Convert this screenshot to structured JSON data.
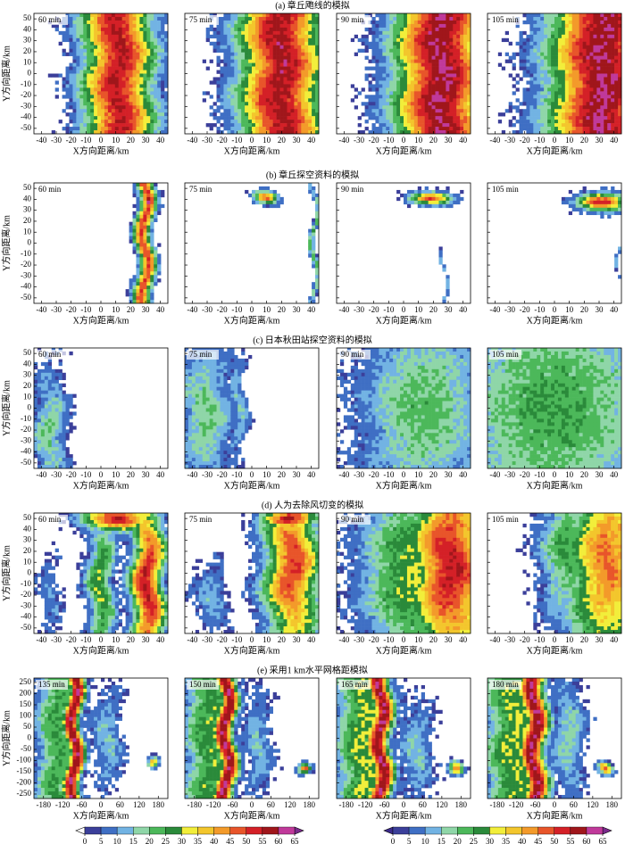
{
  "figure": {
    "x_label": "X方向距离/km",
    "y_label": "Y方向距离/km",
    "rows": [
      {
        "title": "(a) 章丘飑线的模拟",
        "type": "contourf",
        "panels": [
          "60 min",
          "75 min",
          "90 min",
          "105 min"
        ],
        "xlim": [
          -45,
          45
        ],
        "xticks": [
          -40,
          -30,
          -20,
          -10,
          0,
          10,
          20,
          30,
          40
        ],
        "ylim": [
          -55,
          55
        ],
        "yticks": [
          -50,
          -40,
          -30,
          -20,
          -10,
          0,
          10,
          20,
          30,
          40,
          50
        ]
      },
      {
        "title": "(b) 章丘探空资料的模拟",
        "type": "contourf",
        "panels": [
          "60 min",
          "75 min",
          "90 min",
          "105 min"
        ],
        "xlim": [
          -45,
          45
        ],
        "xticks": [
          -40,
          -30,
          -20,
          -10,
          0,
          10,
          20,
          30,
          40
        ],
        "ylim": [
          -55,
          55
        ],
        "yticks": [
          -50,
          -40,
          -30,
          -20,
          -10,
          0,
          10,
          20,
          30,
          40,
          50
        ]
      },
      {
        "title": "(c) 日本秋田站探空资料的模拟",
        "type": "contourf",
        "panels": [
          "60 min",
          "75 min",
          "90 min",
          "105 min"
        ],
        "xlim": [
          -45,
          45
        ],
        "xticks": [
          -40,
          -30,
          -20,
          -10,
          0,
          10,
          20,
          30,
          40
        ],
        "ylim": [
          -55,
          55
        ],
        "yticks": [
          -50,
          -40,
          -30,
          -20,
          -10,
          0,
          10,
          20,
          30,
          40,
          50
        ]
      },
      {
        "title": "(d) 人为去除风切变的模拟",
        "type": "contourf",
        "panels": [
          "60 min",
          "75 min",
          "90 min",
          "105 min"
        ],
        "xlim": [
          -45,
          45
        ],
        "xticks": [
          -40,
          -30,
          -20,
          -10,
          0,
          10,
          20,
          30,
          40
        ],
        "ylim": [
          -55,
          55
        ],
        "yticks": [
          -50,
          -40,
          -30,
          -20,
          -10,
          0,
          10,
          20,
          30,
          40,
          50
        ]
      },
      {
        "title": "(e) 采用1 km水平网格距模拟",
        "type": "contourf",
        "panels": [
          "135 min",
          "150 min",
          "165 min",
          "180 min"
        ],
        "xlim": [
          -210,
          210
        ],
        "xticks": [
          -180,
          -120,
          -60,
          0,
          60,
          120,
          180
        ],
        "ylim": [
          -270,
          270
        ],
        "yticks": [
          -250,
          -200,
          -150,
          -100,
          -50,
          0,
          50,
          100,
          150,
          200,
          250
        ]
      }
    ],
    "colorbars": [
      {
        "ticks": [
          0,
          5,
          10,
          15,
          20,
          25,
          30,
          35,
          40,
          45,
          50,
          55,
          60,
          65
        ],
        "colors": [
          "#3b3f9a",
          "#3f6fc4",
          "#72b3e3",
          "#8fd6a8",
          "#4cb85a",
          "#2a8a3a",
          "#f2ee3a",
          "#f3c62c",
          "#f39a2a",
          "#e8552a",
          "#d42027",
          "#a0161b",
          "#c0399a"
        ],
        "under_color": "#ffffff",
        "over_color": "#7b2a8c"
      },
      {
        "ticks": [
          0,
          5,
          10,
          15,
          20,
          25,
          30,
          35,
          40,
          45,
          50,
          55,
          60,
          65
        ],
        "colors": [
          "#3b3f9a",
          "#3f6fc4",
          "#72b3e3",
          "#8fd6a8",
          "#4cb85a",
          "#2a8a3a",
          "#f2ee3a",
          "#f3c62c",
          "#f39a2a",
          "#e8552a",
          "#d42027",
          "#a0161b",
          "#c0399a"
        ],
        "under_color": "#3b2a8c",
        "over_color": "#7b2a8c"
      }
    ]
  }
}
